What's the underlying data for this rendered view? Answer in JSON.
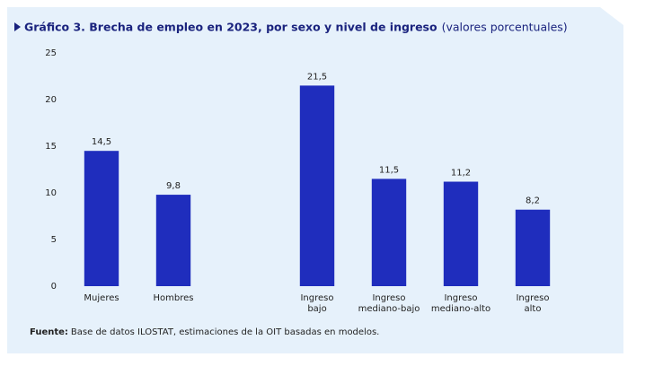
{
  "chart_data": {
    "type": "bar",
    "title": "Gráfico 3.  Brecha de empleo en 2023, por sexo y nivel de ingreso",
    "subtitle": "(valores porcentuales)",
    "categories": [
      "Mujeres",
      "Hombres",
      null,
      "Ingreso bajo",
      "Ingreso mediano-bajo",
      "Ingreso mediano-alto",
      "Ingreso alto"
    ],
    "values": [
      14.5,
      9.8,
      null,
      21.5,
      11.5,
      11.2,
      8.2
    ],
    "value_labels": [
      "14,5",
      "9,8",
      null,
      "21,5",
      "11,5",
      "11,2",
      "8,2"
    ],
    "color": "#1f2dbd",
    "ylim": [
      0,
      25
    ],
    "yticks": [
      0,
      5,
      10,
      15,
      20,
      25
    ],
    "source_label": "Fuente:",
    "source_text": "Base de datos ILOSTAT, estimaciones de la OIT basadas en modelos."
  }
}
